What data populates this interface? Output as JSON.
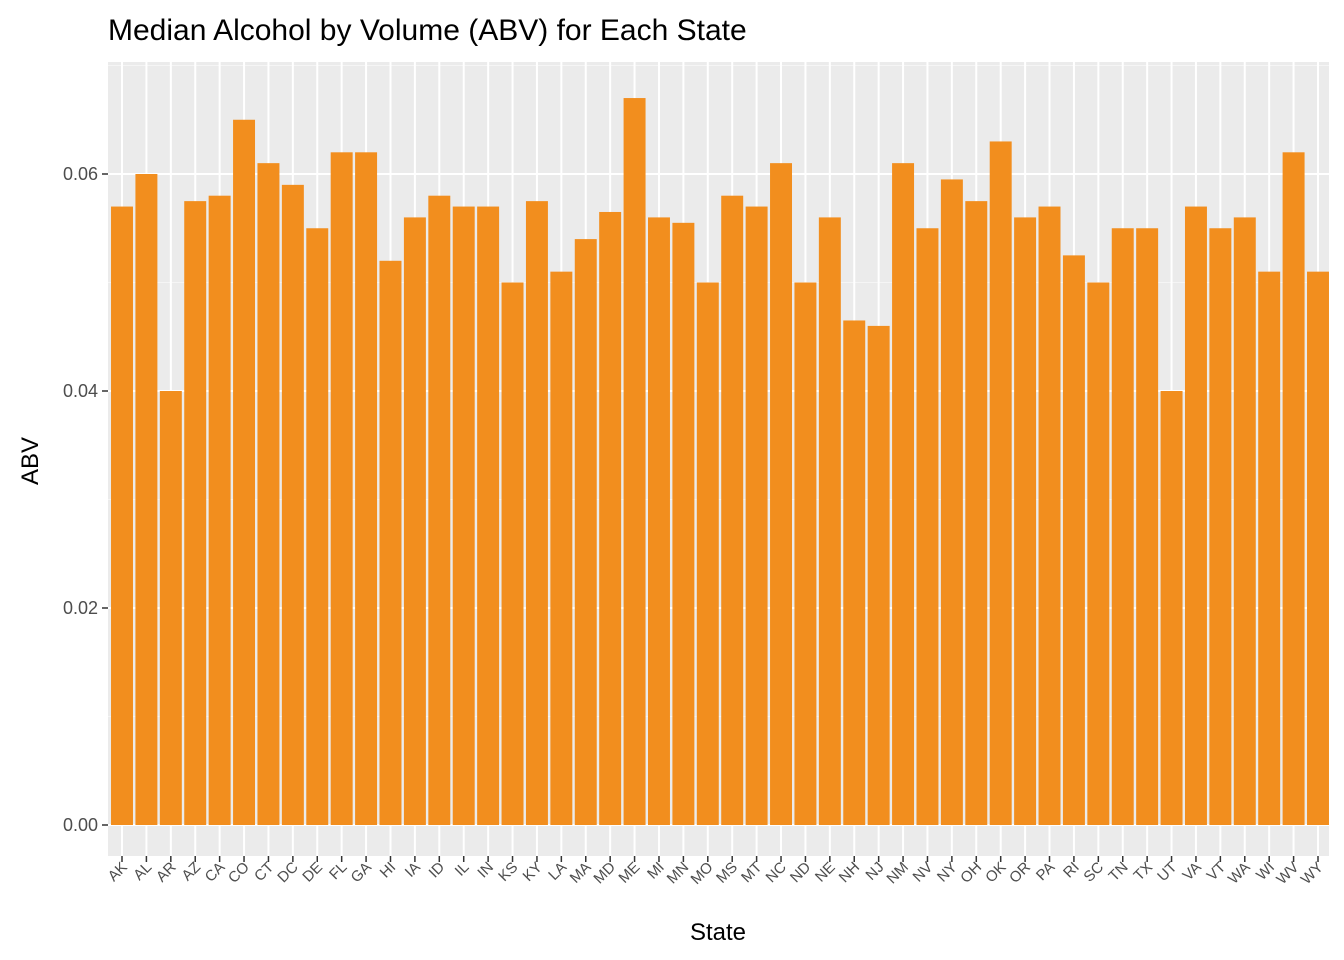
{
  "chart_data": {
    "type": "bar",
    "title": "Median Alcohol by Volume (ABV) for Each State",
    "xlabel": "State",
    "ylabel": "ABV",
    "categories": [
      "AK",
      "AL",
      "AR",
      "AZ",
      "CA",
      "CO",
      "CT",
      "DC",
      "DE",
      "FL",
      "GA",
      "HI",
      "IA",
      "ID",
      "IL",
      "IN",
      "KS",
      "KY",
      "LA",
      "MA",
      "MD",
      "ME",
      "MI",
      "MN",
      "MO",
      "MS",
      "MT",
      "NC",
      "ND",
      "NE",
      "NH",
      "NJ",
      "NM",
      "NV",
      "NY",
      "OH",
      "OK",
      "OR",
      "PA",
      "RI",
      "SC",
      "TN",
      "TX",
      "UT",
      "VA",
      "VT",
      "WA",
      "WI",
      "WV",
      "WY"
    ],
    "values": [
      0.057,
      0.06,
      0.04,
      0.0575,
      0.058,
      0.065,
      0.061,
      0.059,
      0.055,
      0.062,
      0.062,
      0.052,
      0.056,
      0.058,
      0.057,
      0.057,
      0.05,
      0.0575,
      0.051,
      0.054,
      0.0565,
      0.067,
      0.056,
      0.0555,
      0.05,
      0.058,
      0.057,
      0.061,
      0.05,
      0.056,
      0.0465,
      0.046,
      0.061,
      0.055,
      0.0595,
      0.0575,
      0.063,
      0.056,
      0.057,
      0.0525,
      0.05,
      0.055,
      0.055,
      0.04,
      0.057,
      0.055,
      0.056,
      0.051,
      0.062,
      0.051
    ],
    "y_ticks": [
      "0.00",
      "0.02",
      "0.04",
      "0.06"
    ],
    "ylim": [
      0.0,
      0.07
    ],
    "grid": true,
    "legend": "none",
    "colors": {
      "bar": "#F28E1E",
      "panel_background": "#EBEBEB",
      "grid_major": "#FFFFFF",
      "grid_minor": "#F5F5F5"
    }
  }
}
